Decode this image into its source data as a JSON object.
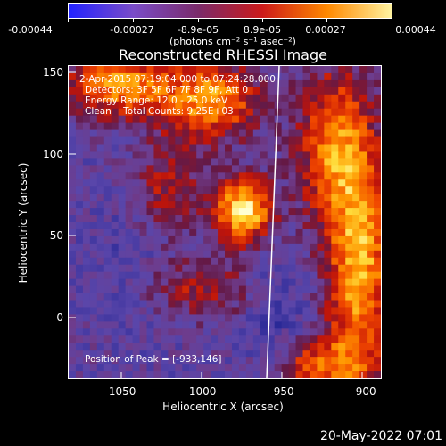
{
  "colorbar": {
    "ticks": [
      "-0.00044",
      "-0.00027",
      "-8.9e-05",
      "8.9e-05",
      "0.00027",
      "0.00044"
    ],
    "units": "(photons cm⁻² s⁻¹ asec⁻²)",
    "colors": [
      "#2222ff",
      "#7a4cc8",
      "#7a2b6b",
      "#cc1a1a",
      "#ff8800",
      "#fff3a0"
    ]
  },
  "title": "Reconstructed RHESSI Image",
  "info": {
    "line1": "2-Apr-2015 07:19:04.000 to 07:24:28.000",
    "line2": "Detectors: 3F 5F 6F 7F 8F 9F, Att 0",
    "line3": "Energy Range: 12.0 - 25.0 keV",
    "line4": "Clean    Total Counts: 9.25E+03",
    "peak": "Position of Peak = [-933,146]"
  },
  "axes": {
    "xlabel": "Heliocentric X (arcsec)",
    "ylabel": "Heliocentric Y (arcsec)",
    "xticks": [
      "-1050",
      "-1000",
      "-950",
      "-900"
    ],
    "yticks": [
      "150",
      "100",
      "50",
      "0"
    ]
  },
  "timestamp": "20-May-2022 07:01"
}
